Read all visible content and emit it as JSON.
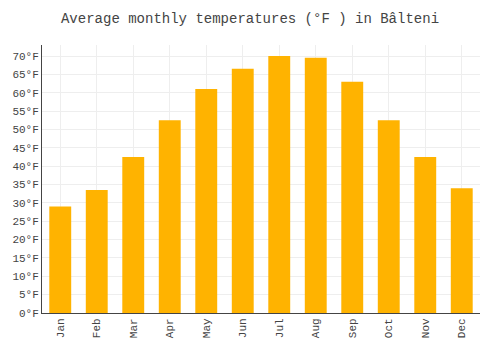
{
  "chart_data": {
    "type": "bar",
    "title": "Average monthly temperatures (°F ) in Bâlteni",
    "categories": [
      "Jan",
      "Feb",
      "Mar",
      "Apr",
      "May",
      "Jun",
      "Jul",
      "Aug",
      "Sep",
      "Oct",
      "Nov",
      "Dec"
    ],
    "values": [
      29,
      33.5,
      42.5,
      52.5,
      61,
      66.5,
      70,
      69.5,
      63,
      52.5,
      42.5,
      34
    ],
    "color": "#FFB300",
    "ylim": [
      0,
      73
    ],
    "yticks": [
      {
        "value": 0,
        "label": "0°F"
      },
      {
        "value": 5,
        "label": "5°F"
      },
      {
        "value": 10,
        "label": "10°F"
      },
      {
        "value": 15,
        "label": "15°F"
      },
      {
        "value": 20,
        "label": "20°F"
      },
      {
        "value": 25,
        "label": "25°F"
      },
      {
        "value": 30,
        "label": "30°F"
      },
      {
        "value": 35,
        "label": "35°F"
      },
      {
        "value": 40,
        "label": "40°F"
      },
      {
        "value": 45,
        "label": "45°F"
      },
      {
        "value": 50,
        "label": "50°F"
      },
      {
        "value": 55,
        "label": "55°F"
      },
      {
        "value": 60,
        "label": "60°F"
      },
      {
        "value": 65,
        "label": "65°F"
      },
      {
        "value": 70,
        "label": "70°F"
      }
    ],
    "grid": true
  }
}
